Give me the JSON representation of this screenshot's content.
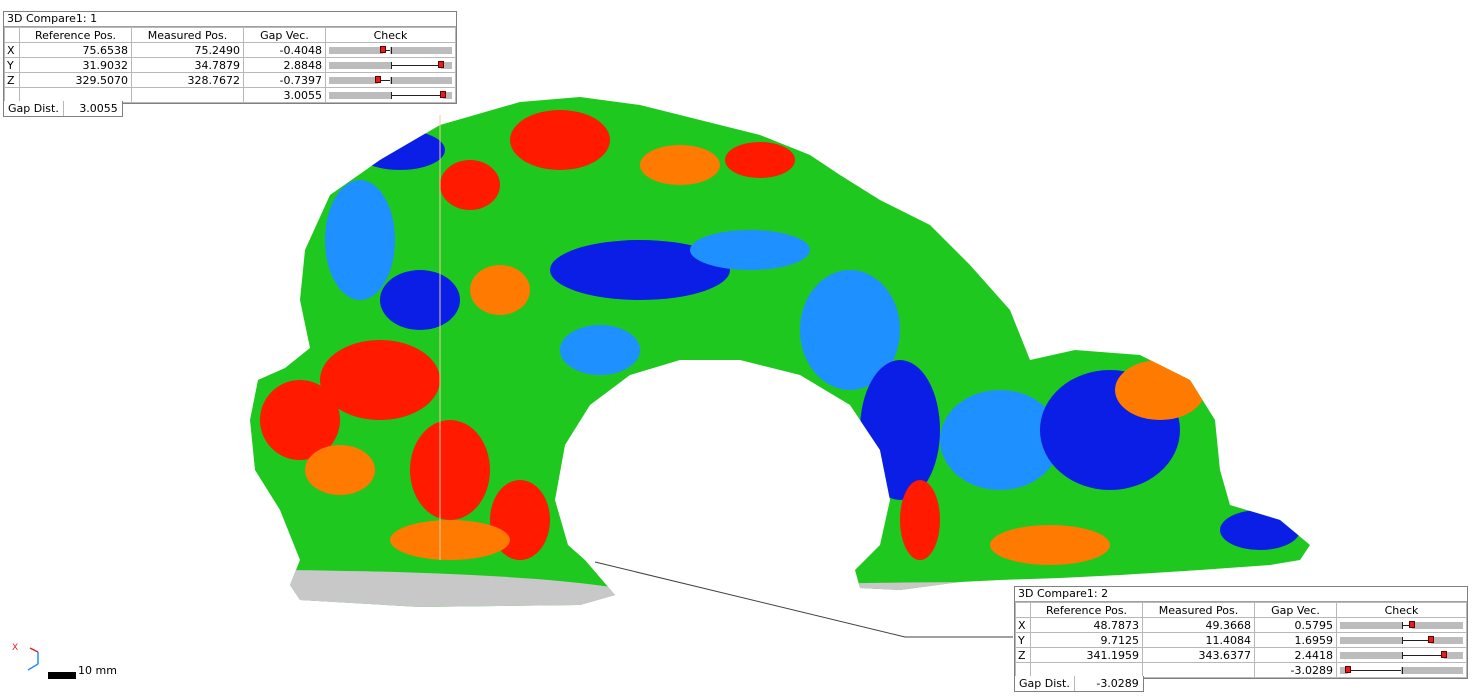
{
  "compare1": {
    "title": "3D Compare1: 1",
    "headers": [
      "Reference Pos.",
      "Measured Pos.",
      "Gap Vec.",
      "Check"
    ],
    "rows": [
      {
        "axis": "X",
        "ref": "75.6538",
        "meas": "75.2490",
        "gap": "-0.4048",
        "level": -0.4048
      },
      {
        "axis": "Y",
        "ref": "31.9032",
        "meas": "34.7879",
        "gap": "2.8848",
        "level": 2.8848
      },
      {
        "axis": "Z",
        "ref": "329.5070",
        "meas": "328.7672",
        "gap": "-0.7397",
        "level": -0.7397
      },
      {
        "axis": "",
        "ref": "",
        "meas": "",
        "gap": "3.0055",
        "level": 3.0055
      }
    ],
    "gap_label": "Gap Dist.",
    "gap_value": "3.0055"
  },
  "compare2": {
    "title": "3D Compare1: 2",
    "headers": [
      "Reference Pos.",
      "Measured Pos.",
      "Gap Vec.",
      "Check"
    ],
    "rows": [
      {
        "axis": "X",
        "ref": "48.7873",
        "meas": "49.3668",
        "gap": "0.5795",
        "level": 0.5795
      },
      {
        "axis": "Y",
        "ref": "9.7125",
        "meas": "11.4084",
        "gap": "1.6959",
        "level": 1.6959
      },
      {
        "axis": "Z",
        "ref": "341.1959",
        "meas": "343.6377",
        "gap": "2.4418",
        "level": 2.4418
      },
      {
        "axis": "",
        "ref": "",
        "meas": "",
        "gap": "-3.0289",
        "level": -3.0289
      }
    ],
    "gap_label": "Gap Dist.",
    "gap_value": "-3.0289"
  },
  "scale": {
    "label": "10 mm"
  },
  "triad": {
    "x_label": "X"
  },
  "colors": {
    "red": "#ff1a00",
    "orange": "#ff7a00",
    "green": "#1ec81e",
    "lightblue": "#1e90ff",
    "blue": "#0a1ee6",
    "grey": "#c8c8c8"
  }
}
